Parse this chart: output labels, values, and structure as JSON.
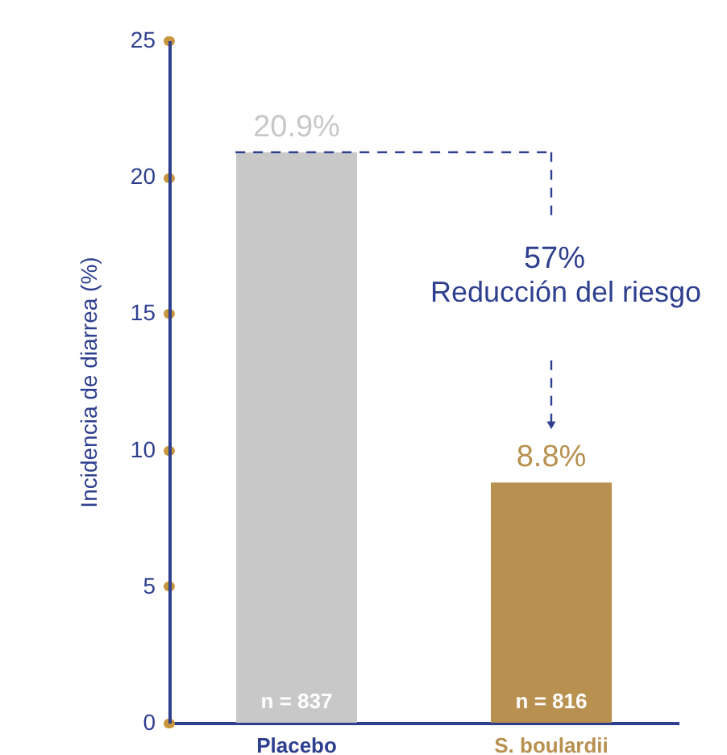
{
  "chart_data": {
    "type": "bar",
    "ylabel": "Incidencia de diarrea (%)",
    "categories": [
      "Placebo",
      "S. boulardii"
    ],
    "values": [
      20.9,
      8.8
    ],
    "colors": [
      "#c8c8c8",
      "#b8904f"
    ],
    "value_labels": [
      "20.9%",
      "8.8%"
    ],
    "annotations": [
      {
        "text": "n = 837",
        "x": "Placebo",
        "y": 0
      },
      {
        "text": "n = 816",
        "x": "S. boulardii",
        "y": 0
      },
      "57%",
      "Reducción del riesgo"
    ],
    "ylim": [
      0,
      25
    ],
    "yticks": [
      0,
      5,
      10,
      15,
      20,
      25
    ],
    "grid": false
  }
}
